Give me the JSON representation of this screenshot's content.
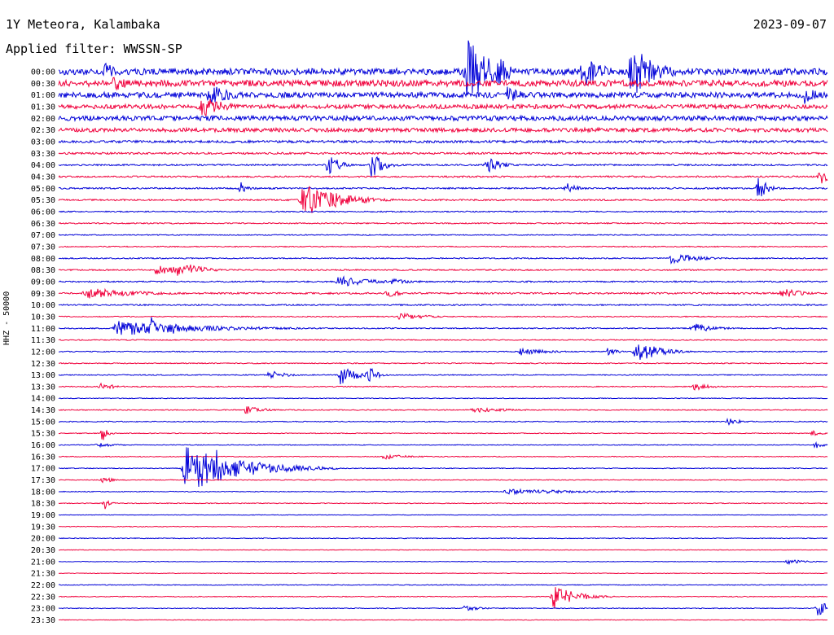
{
  "header": {
    "station": "1Y Meteora, Kalambaka",
    "date": "2023-09-07",
    "filter": "Applied filter: WWSSN-SP"
  },
  "chart_data": {
    "type": "line",
    "title": "1Y Meteora, Kalambaka",
    "ylabel": "HHZ - 50000",
    "date": "2023-09-07",
    "filter": "WWSSN-SP",
    "row_interval_minutes": 30,
    "colors": [
      "#0000d8",
      "#f0003c"
    ],
    "rows": [
      {
        "label": "00:00",
        "noise": 0.32
      },
      {
        "label": "00:30",
        "noise": 0.32
      },
      {
        "label": "01:00",
        "noise": 0.28
      },
      {
        "label": "01:30",
        "noise": 0.22
      },
      {
        "label": "02:00",
        "noise": 0.24
      },
      {
        "label": "02:30",
        "noise": 0.2
      },
      {
        "label": "03:00",
        "noise": 0.12
      },
      {
        "label": "03:30",
        "noise": 0.1
      },
      {
        "label": "04:00",
        "noise": 0.08
      },
      {
        "label": "04:30",
        "noise": 0.08
      },
      {
        "label": "05:00",
        "noise": 0.08
      },
      {
        "label": "05:30",
        "noise": 0.08
      },
      {
        "label": "06:00",
        "noise": 0.06
      },
      {
        "label": "06:30",
        "noise": 0.06
      },
      {
        "label": "07:00",
        "noise": 0.05
      },
      {
        "label": "07:30",
        "noise": 0.05
      },
      {
        "label": "08:00",
        "noise": 0.06
      },
      {
        "label": "08:30",
        "noise": 0.07
      },
      {
        "label": "09:00",
        "noise": 0.07
      },
      {
        "label": "09:30",
        "noise": 0.09
      },
      {
        "label": "10:00",
        "noise": 0.07
      },
      {
        "label": "10:30",
        "noise": 0.05
      },
      {
        "label": "11:00",
        "noise": 0.06
      },
      {
        "label": "11:30",
        "noise": 0.05
      },
      {
        "label": "12:00",
        "noise": 0.05
      },
      {
        "label": "12:30",
        "noise": 0.05
      },
      {
        "label": "13:00",
        "noise": 0.05
      },
      {
        "label": "13:30",
        "noise": 0.05
      },
      {
        "label": "14:00",
        "noise": 0.04
      },
      {
        "label": "14:30",
        "noise": 0.05
      },
      {
        "label": "15:00",
        "noise": 0.05
      },
      {
        "label": "15:30",
        "noise": 0.04
      },
      {
        "label": "16:00",
        "noise": 0.04
      },
      {
        "label": "16:30",
        "noise": 0.04
      },
      {
        "label": "17:00",
        "noise": 0.04
      },
      {
        "label": "17:30",
        "noise": 0.04
      },
      {
        "label": "18:00",
        "noise": 0.04
      },
      {
        "label": "18:30",
        "noise": 0.04
      },
      {
        "label": "19:00",
        "noise": 0.03
      },
      {
        "label": "19:30",
        "noise": 0.04
      },
      {
        "label": "20:00",
        "noise": 0.04
      },
      {
        "label": "20:30",
        "noise": 0.03
      },
      {
        "label": "21:00",
        "noise": 0.03
      },
      {
        "label": "21:30",
        "noise": 0.03
      },
      {
        "label": "22:00",
        "noise": 0.04
      },
      {
        "label": "22:30",
        "noise": 0.04
      },
      {
        "label": "23:00",
        "noise": 0.04
      },
      {
        "label": "23:30",
        "noise": 0.03
      }
    ],
    "events": [
      {
        "row": 0,
        "minute": 1.8,
        "amp": 1.0,
        "dur": 0.5
      },
      {
        "row": 0,
        "minute": 15.9,
        "amp": 4.2,
        "dur": 0.8
      },
      {
        "row": 0,
        "minute": 17.1,
        "amp": 2.0,
        "dur": 0.5
      },
      {
        "row": 0,
        "minute": 20.4,
        "amp": 1.8,
        "dur": 0.8
      },
      {
        "row": 0,
        "minute": 22.3,
        "amp": 3.0,
        "dur": 0.9
      },
      {
        "row": 1,
        "minute": 2.1,
        "amp": 1.0,
        "dur": 0.6
      },
      {
        "row": 2,
        "minute": 5.8,
        "amp": 1.3,
        "dur": 0.8
      },
      {
        "row": 2,
        "minute": 17.5,
        "amp": 0.9,
        "dur": 0.6
      },
      {
        "row": 2,
        "minute": 29.1,
        "amp": 1.0,
        "dur": 0.5
      },
      {
        "row": 3,
        "minute": 5.5,
        "amp": 1.4,
        "dur": 0.8
      },
      {
        "row": 8,
        "minute": 10.5,
        "amp": 1.4,
        "dur": 0.4
      },
      {
        "row": 8,
        "minute": 12.2,
        "amp": 1.6,
        "dur": 0.4
      },
      {
        "row": 8,
        "minute": 16.7,
        "amp": 0.9,
        "dur": 0.5
      },
      {
        "row": 9,
        "minute": 29.7,
        "amp": 0.9,
        "dur": 0.4
      },
      {
        "row": 10,
        "minute": 7.1,
        "amp": 0.9,
        "dur": 0.3
      },
      {
        "row": 10,
        "minute": 19.8,
        "amp": 0.6,
        "dur": 0.4
      },
      {
        "row": 10,
        "minute": 27.3,
        "amp": 1.5,
        "dur": 0.3
      },
      {
        "row": 11,
        "minute": 9.5,
        "amp": 2.2,
        "dur": 1.2
      },
      {
        "row": 16,
        "minute": 23.9,
        "amp": 0.6,
        "dur": 1.0
      },
      {
        "row": 17,
        "minute": 3.8,
        "amp": 0.6,
        "dur": 0.7
      },
      {
        "row": 17,
        "minute": 4.5,
        "amp": 0.8,
        "dur": 0.7
      },
      {
        "row": 17,
        "minute": 5.0,
        "amp": 0.7,
        "dur": 0.7
      },
      {
        "row": 18,
        "minute": 10.9,
        "amp": 0.6,
        "dur": 1.2
      },
      {
        "row": 18,
        "minute": 13.0,
        "amp": 0.3,
        "dur": 1.0
      },
      {
        "row": 19,
        "minute": 1.0,
        "amp": 0.6,
        "dur": 2.0
      },
      {
        "row": 19,
        "minute": 12.8,
        "amp": 0.5,
        "dur": 0.5
      },
      {
        "row": 19,
        "minute": 28.2,
        "amp": 0.6,
        "dur": 0.8
      },
      {
        "row": 21,
        "minute": 13.3,
        "amp": 0.4,
        "dur": 1.0
      },
      {
        "row": 22,
        "minute": 2.2,
        "amp": 0.9,
        "dur": 3.0
      },
      {
        "row": 22,
        "minute": 3.6,
        "amp": 1.3,
        "dur": 0.3
      },
      {
        "row": 22,
        "minute": 4.5,
        "amp": 1.0,
        "dur": 0.3
      },
      {
        "row": 22,
        "minute": 24.7,
        "amp": 0.6,
        "dur": 0.8
      },
      {
        "row": 24,
        "minute": 18.0,
        "amp": 0.4,
        "dur": 1.0
      },
      {
        "row": 24,
        "minute": 21.4,
        "amp": 0.6,
        "dur": 0.3
      },
      {
        "row": 24,
        "minute": 22.5,
        "amp": 1.3,
        "dur": 0.8
      },
      {
        "row": 26,
        "minute": 8.2,
        "amp": 0.5,
        "dur": 0.6
      },
      {
        "row": 26,
        "minute": 11.0,
        "amp": 1.1,
        "dur": 0.6
      },
      {
        "row": 26,
        "minute": 12.1,
        "amp": 1.0,
        "dur": 0.3
      },
      {
        "row": 27,
        "minute": 1.6,
        "amp": 0.4,
        "dur": 0.6
      },
      {
        "row": 27,
        "minute": 24.8,
        "amp": 0.4,
        "dur": 0.6
      },
      {
        "row": 29,
        "minute": 7.3,
        "amp": 0.5,
        "dur": 0.6
      },
      {
        "row": 29,
        "minute": 16.0,
        "amp": 0.3,
        "dur": 1.5
      },
      {
        "row": 30,
        "minute": 26.1,
        "amp": 0.4,
        "dur": 0.5
      },
      {
        "row": 31,
        "minute": 1.7,
        "amp": 0.9,
        "dur": 0.2
      },
      {
        "row": 31,
        "minute": 29.4,
        "amp": 0.3,
        "dur": 0.4
      },
      {
        "row": 32,
        "minute": 1.5,
        "amp": 0.3,
        "dur": 0.6
      },
      {
        "row": 32,
        "minute": 29.5,
        "amp": 0.4,
        "dur": 0.3
      },
      {
        "row": 33,
        "minute": 12.6,
        "amp": 0.3,
        "dur": 1.0
      },
      {
        "row": 34,
        "minute": 4.9,
        "amp": 2.6,
        "dur": 2.0
      },
      {
        "row": 34,
        "minute": 6.1,
        "amp": 4.0,
        "dur": 0.3
      },
      {
        "row": 35,
        "minute": 1.7,
        "amp": 0.3,
        "dur": 0.6
      },
      {
        "row": 36,
        "minute": 17.4,
        "amp": 0.3,
        "dur": 3.0
      },
      {
        "row": 37,
        "minute": 1.8,
        "amp": 0.7,
        "dur": 0.2
      },
      {
        "row": 42,
        "minute": 28.4,
        "amp": 0.3,
        "dur": 0.6
      },
      {
        "row": 45,
        "minute": 19.3,
        "amp": 1.4,
        "dur": 0.8
      },
      {
        "row": 46,
        "minute": 15.8,
        "amp": 0.3,
        "dur": 0.6
      },
      {
        "row": 46,
        "minute": 29.6,
        "amp": 0.8,
        "dur": 0.6
      }
    ]
  }
}
